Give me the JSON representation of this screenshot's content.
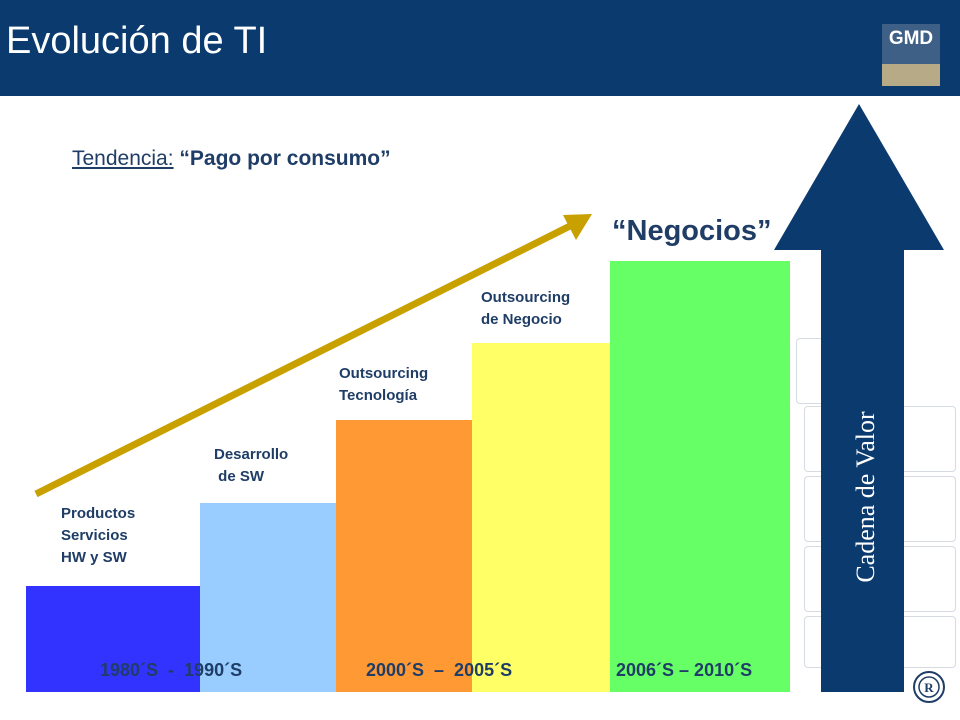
{
  "header": {
    "title": "Evolución de TI",
    "logo_text": "GMD"
  },
  "trend": {
    "label": "Tendencia:",
    "quote": "“Pago por consumo”"
  },
  "top_label": "“Negocios”",
  "stages": [
    {
      "label": "Productos\nServicios\nHW y SW",
      "color": "#3333ff"
    },
    {
      "label": "Desarrollo\n de SW",
      "color": "#99ccff"
    },
    {
      "label": "Outsourcing\nTecnología",
      "color": "#ff9933"
    },
    {
      "label": "Outsourcing\nde Negocio",
      "color": "#ffff66"
    },
    {
      "label": "",
      "color": "#66ff66"
    }
  ],
  "decades": [
    "1980´S  -  1990´S",
    "2000´S  –  2005´S",
    "2006´S – 2010´S"
  ],
  "value_chain": {
    "label": "Cadena de Valor",
    "color": "#0b3a6e"
  },
  "trend_arrow_color": "#c8a000"
}
